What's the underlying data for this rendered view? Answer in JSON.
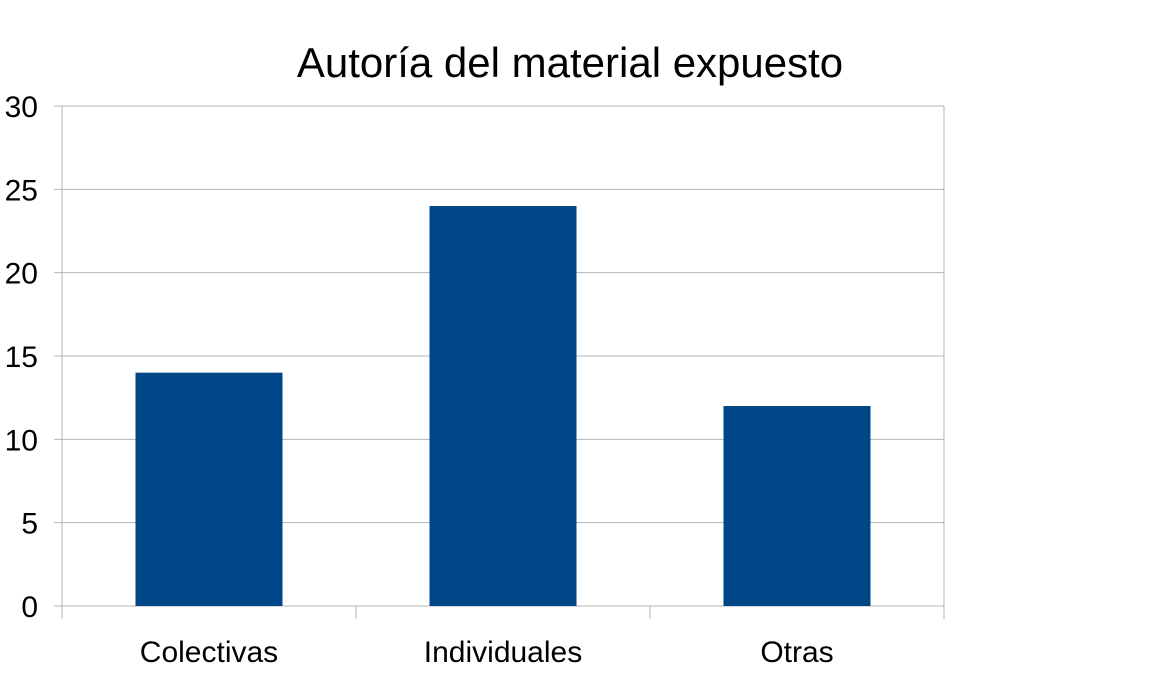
{
  "chart_data": {
    "type": "bar",
    "title": "Autoría del material expuesto",
    "categories": [
      "Colectivas",
      "Individuales",
      "Otras"
    ],
    "values": [
      14,
      24,
      12
    ],
    "xlabel": "",
    "ylabel": "",
    "ylim": [
      0,
      30
    ],
    "yticks": [
      "0",
      "5",
      "10",
      "15",
      "20",
      "25",
      "30"
    ],
    "grid": true,
    "legend": "none",
    "colors": {
      "bar": "#004586",
      "grid": "#b3b3b3",
      "axis": "#b3b3b3"
    }
  }
}
